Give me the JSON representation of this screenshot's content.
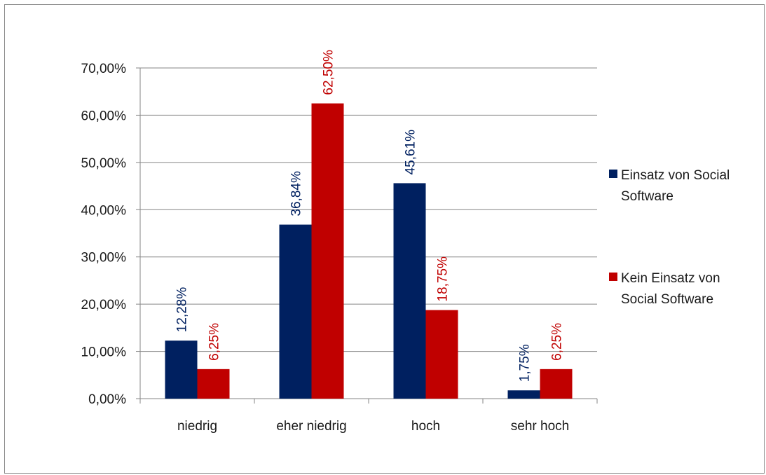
{
  "chart_data": {
    "type": "bar",
    "categories": [
      "niedrig",
      "eher niedrig",
      "hoch",
      "sehr hoch"
    ],
    "series": [
      {
        "name_lines": [
          "Einsatz von Social",
          "Software"
        ],
        "values": [
          12.28,
          36.84,
          45.61,
          1.75
        ],
        "labels": [
          "12,28%",
          "36,84%",
          "45,61%",
          "1,75%"
        ],
        "color": "#002060"
      },
      {
        "name_lines": [
          "Kein Einsatz von",
          "Social Software"
        ],
        "values": [
          6.25,
          62.5,
          18.75,
          6.25
        ],
        "labels": [
          "6,25%",
          "62,50%",
          "18,75%",
          "6,25%"
        ],
        "color": "#C00000"
      }
    ],
    "y_ticks": [
      "0,00%",
      "10,00%",
      "20,00%",
      "30,00%",
      "40,00%",
      "50,00%",
      "60,00%",
      "70,00%"
    ],
    "ylim": [
      0,
      70
    ],
    "y_step": 10,
    "grid": true,
    "legend_position": "right"
  }
}
